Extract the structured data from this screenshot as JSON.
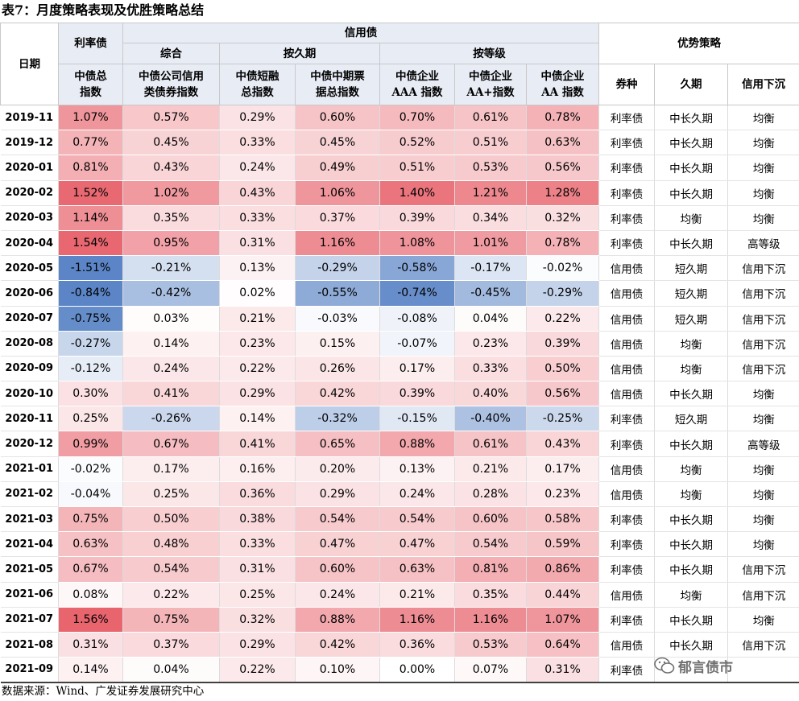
{
  "title": "表7：月度策略表现及优胜策略总结",
  "header": {
    "date": "日期",
    "rate_bond": "利率债",
    "credit_bond": "信用债",
    "winning_strategy": "优势策略",
    "composite": "综合",
    "by_duration": "按久期",
    "by_rating": "按等级",
    "columns": [
      [
        "中债总",
        "指数"
      ],
      [
        "中债公司信用",
        "类债券指数"
      ],
      [
        "中债短融",
        "总指数"
      ],
      [
        "中债中期票",
        "据总指数"
      ],
      [
        "中债企业",
        "AAA 指数"
      ],
      [
        "中债企业",
        "AA+指数"
      ],
      [
        "中债企业",
        "AA 指数"
      ]
    ],
    "strategy_columns": [
      "券种",
      "久期",
      "信用下沉"
    ]
  },
  "rows": [
    {
      "date": "2019-11",
      "values": [
        "1.07%",
        "0.57%",
        "0.29%",
        "0.60%",
        "0.70%",
        "0.61%",
        "0.78%"
      ],
      "strategies": [
        "利率债",
        "中长久期",
        "均衡"
      ]
    },
    {
      "date": "2019-12",
      "values": [
        "0.77%",
        "0.45%",
        "0.33%",
        "0.45%",
        "0.52%",
        "0.51%",
        "0.63%"
      ],
      "strategies": [
        "利率债",
        "中长久期",
        "均衡"
      ]
    },
    {
      "date": "2020-01",
      "values": [
        "0.81%",
        "0.43%",
        "0.24%",
        "0.49%",
        "0.51%",
        "0.53%",
        "0.56%"
      ],
      "strategies": [
        "利率债",
        "中长久期",
        "均衡"
      ]
    },
    {
      "date": "2020-02",
      "values": [
        "1.52%",
        "1.02%",
        "0.43%",
        "1.06%",
        "1.40%",
        "1.21%",
        "1.28%"
      ],
      "strategies": [
        "利率债",
        "中长久期",
        "均衡"
      ]
    },
    {
      "date": "2020-03",
      "values": [
        "1.14%",
        "0.35%",
        "0.33%",
        "0.37%",
        "0.39%",
        "0.34%",
        "0.32%"
      ],
      "strategies": [
        "利率债",
        "均衡",
        "均衡"
      ]
    },
    {
      "date": "2020-04",
      "values": [
        "1.54%",
        "0.95%",
        "0.31%",
        "1.16%",
        "1.08%",
        "1.01%",
        "0.78%"
      ],
      "strategies": [
        "利率债",
        "中长久期",
        "高等级"
      ]
    },
    {
      "date": "2020-05",
      "values": [
        "-1.51%",
        "-0.21%",
        "0.13%",
        "-0.29%",
        "-0.58%",
        "-0.17%",
        "-0.02%"
      ],
      "strategies": [
        "信用债",
        "短久期",
        "信用下沉"
      ]
    },
    {
      "date": "2020-06",
      "values": [
        "-0.84%",
        "-0.42%",
        "0.02%",
        "-0.55%",
        "-0.74%",
        "-0.45%",
        "-0.29%"
      ],
      "strategies": [
        "信用债",
        "短久期",
        "信用下沉"
      ]
    },
    {
      "date": "2020-07",
      "values": [
        "-0.75%",
        "0.03%",
        "0.21%",
        "-0.03%",
        "-0.08%",
        "0.04%",
        "0.22%"
      ],
      "strategies": [
        "信用债",
        "短久期",
        "信用下沉"
      ]
    },
    {
      "date": "2020-08",
      "values": [
        "-0.27%",
        "0.14%",
        "0.23%",
        "0.15%",
        "-0.07%",
        "0.23%",
        "0.39%"
      ],
      "strategies": [
        "信用债",
        "均衡",
        "信用下沉"
      ]
    },
    {
      "date": "2020-09",
      "values": [
        "-0.12%",
        "0.24%",
        "0.22%",
        "0.26%",
        "0.17%",
        "0.33%",
        "0.50%"
      ],
      "strategies": [
        "信用债",
        "均衡",
        "信用下沉"
      ]
    },
    {
      "date": "2020-10",
      "values": [
        "0.30%",
        "0.41%",
        "0.29%",
        "0.42%",
        "0.39%",
        "0.40%",
        "0.56%"
      ],
      "strategies": [
        "信用债",
        "中长久期",
        "均衡"
      ]
    },
    {
      "date": "2020-11",
      "values": [
        "0.25%",
        "-0.26%",
        "0.14%",
        "-0.32%",
        "-0.15%",
        "-0.40%",
        "-0.25%"
      ],
      "strategies": [
        "利率债",
        "短久期",
        "均衡"
      ]
    },
    {
      "date": "2020-12",
      "values": [
        "0.99%",
        "0.67%",
        "0.41%",
        "0.65%",
        "0.88%",
        "0.61%",
        "0.43%"
      ],
      "strategies": [
        "利率债",
        "中长久期",
        "高等级"
      ]
    },
    {
      "date": "2021-01",
      "values": [
        "-0.02%",
        "0.17%",
        "0.16%",
        "0.20%",
        "0.13%",
        "0.21%",
        "0.17%"
      ],
      "strategies": [
        "信用债",
        "均衡",
        "均衡"
      ]
    },
    {
      "date": "2021-02",
      "values": [
        "-0.04%",
        "0.25%",
        "0.36%",
        "0.29%",
        "0.24%",
        "0.28%",
        "0.23%"
      ],
      "strategies": [
        "信用债",
        "均衡",
        "均衡"
      ]
    },
    {
      "date": "2021-03",
      "values": [
        "0.75%",
        "0.50%",
        "0.38%",
        "0.54%",
        "0.54%",
        "0.60%",
        "0.58%"
      ],
      "strategies": [
        "利率债",
        "中长久期",
        "均衡"
      ]
    },
    {
      "date": "2021-04",
      "values": [
        "0.63%",
        "0.48%",
        "0.33%",
        "0.47%",
        "0.47%",
        "0.54%",
        "0.59%"
      ],
      "strategies": [
        "利率债",
        "中长久期",
        "均衡"
      ]
    },
    {
      "date": "2021-05",
      "values": [
        "0.67%",
        "0.54%",
        "0.31%",
        "0.60%",
        "0.63%",
        "0.81%",
        "0.86%"
      ],
      "strategies": [
        "利率债",
        "中长久期",
        "信用下沉"
      ]
    },
    {
      "date": "2021-06",
      "values": [
        "0.08%",
        "0.22%",
        "0.25%",
        "0.24%",
        "0.21%",
        "0.35%",
        "0.44%"
      ],
      "strategies": [
        "信用债",
        "均衡",
        "信用下沉"
      ]
    },
    {
      "date": "2021-07",
      "values": [
        "1.56%",
        "0.75%",
        "0.32%",
        "0.88%",
        "1.16%",
        "1.16%",
        "1.07%"
      ],
      "strategies": [
        "利率债",
        "中长久期",
        "均衡"
      ]
    },
    {
      "date": "2021-08",
      "values": [
        "0.31%",
        "0.37%",
        "0.29%",
        "0.42%",
        "0.36%",
        "0.53%",
        "0.64%"
      ],
      "strategies": [
        "信用债",
        "中长久期",
        "信用下沉"
      ]
    },
    {
      "date": "2021-09",
      "values": [
        "0.14%",
        "0.04%",
        "0.22%",
        "0.10%",
        "0.00%",
        "0.07%",
        "0.31%"
      ],
      "strategies": [
        "利率债",
        "",
        ""
      ]
    }
  ],
  "source": "数据来源：Wind、广发证券发展研究中心",
  "watermark": "郁言债市",
  "watermark_icon": "wechat-logo",
  "colors": {
    "positive": "#e8656e",
    "neutral": "#ffffff",
    "negative": "#5b85c6"
  }
}
